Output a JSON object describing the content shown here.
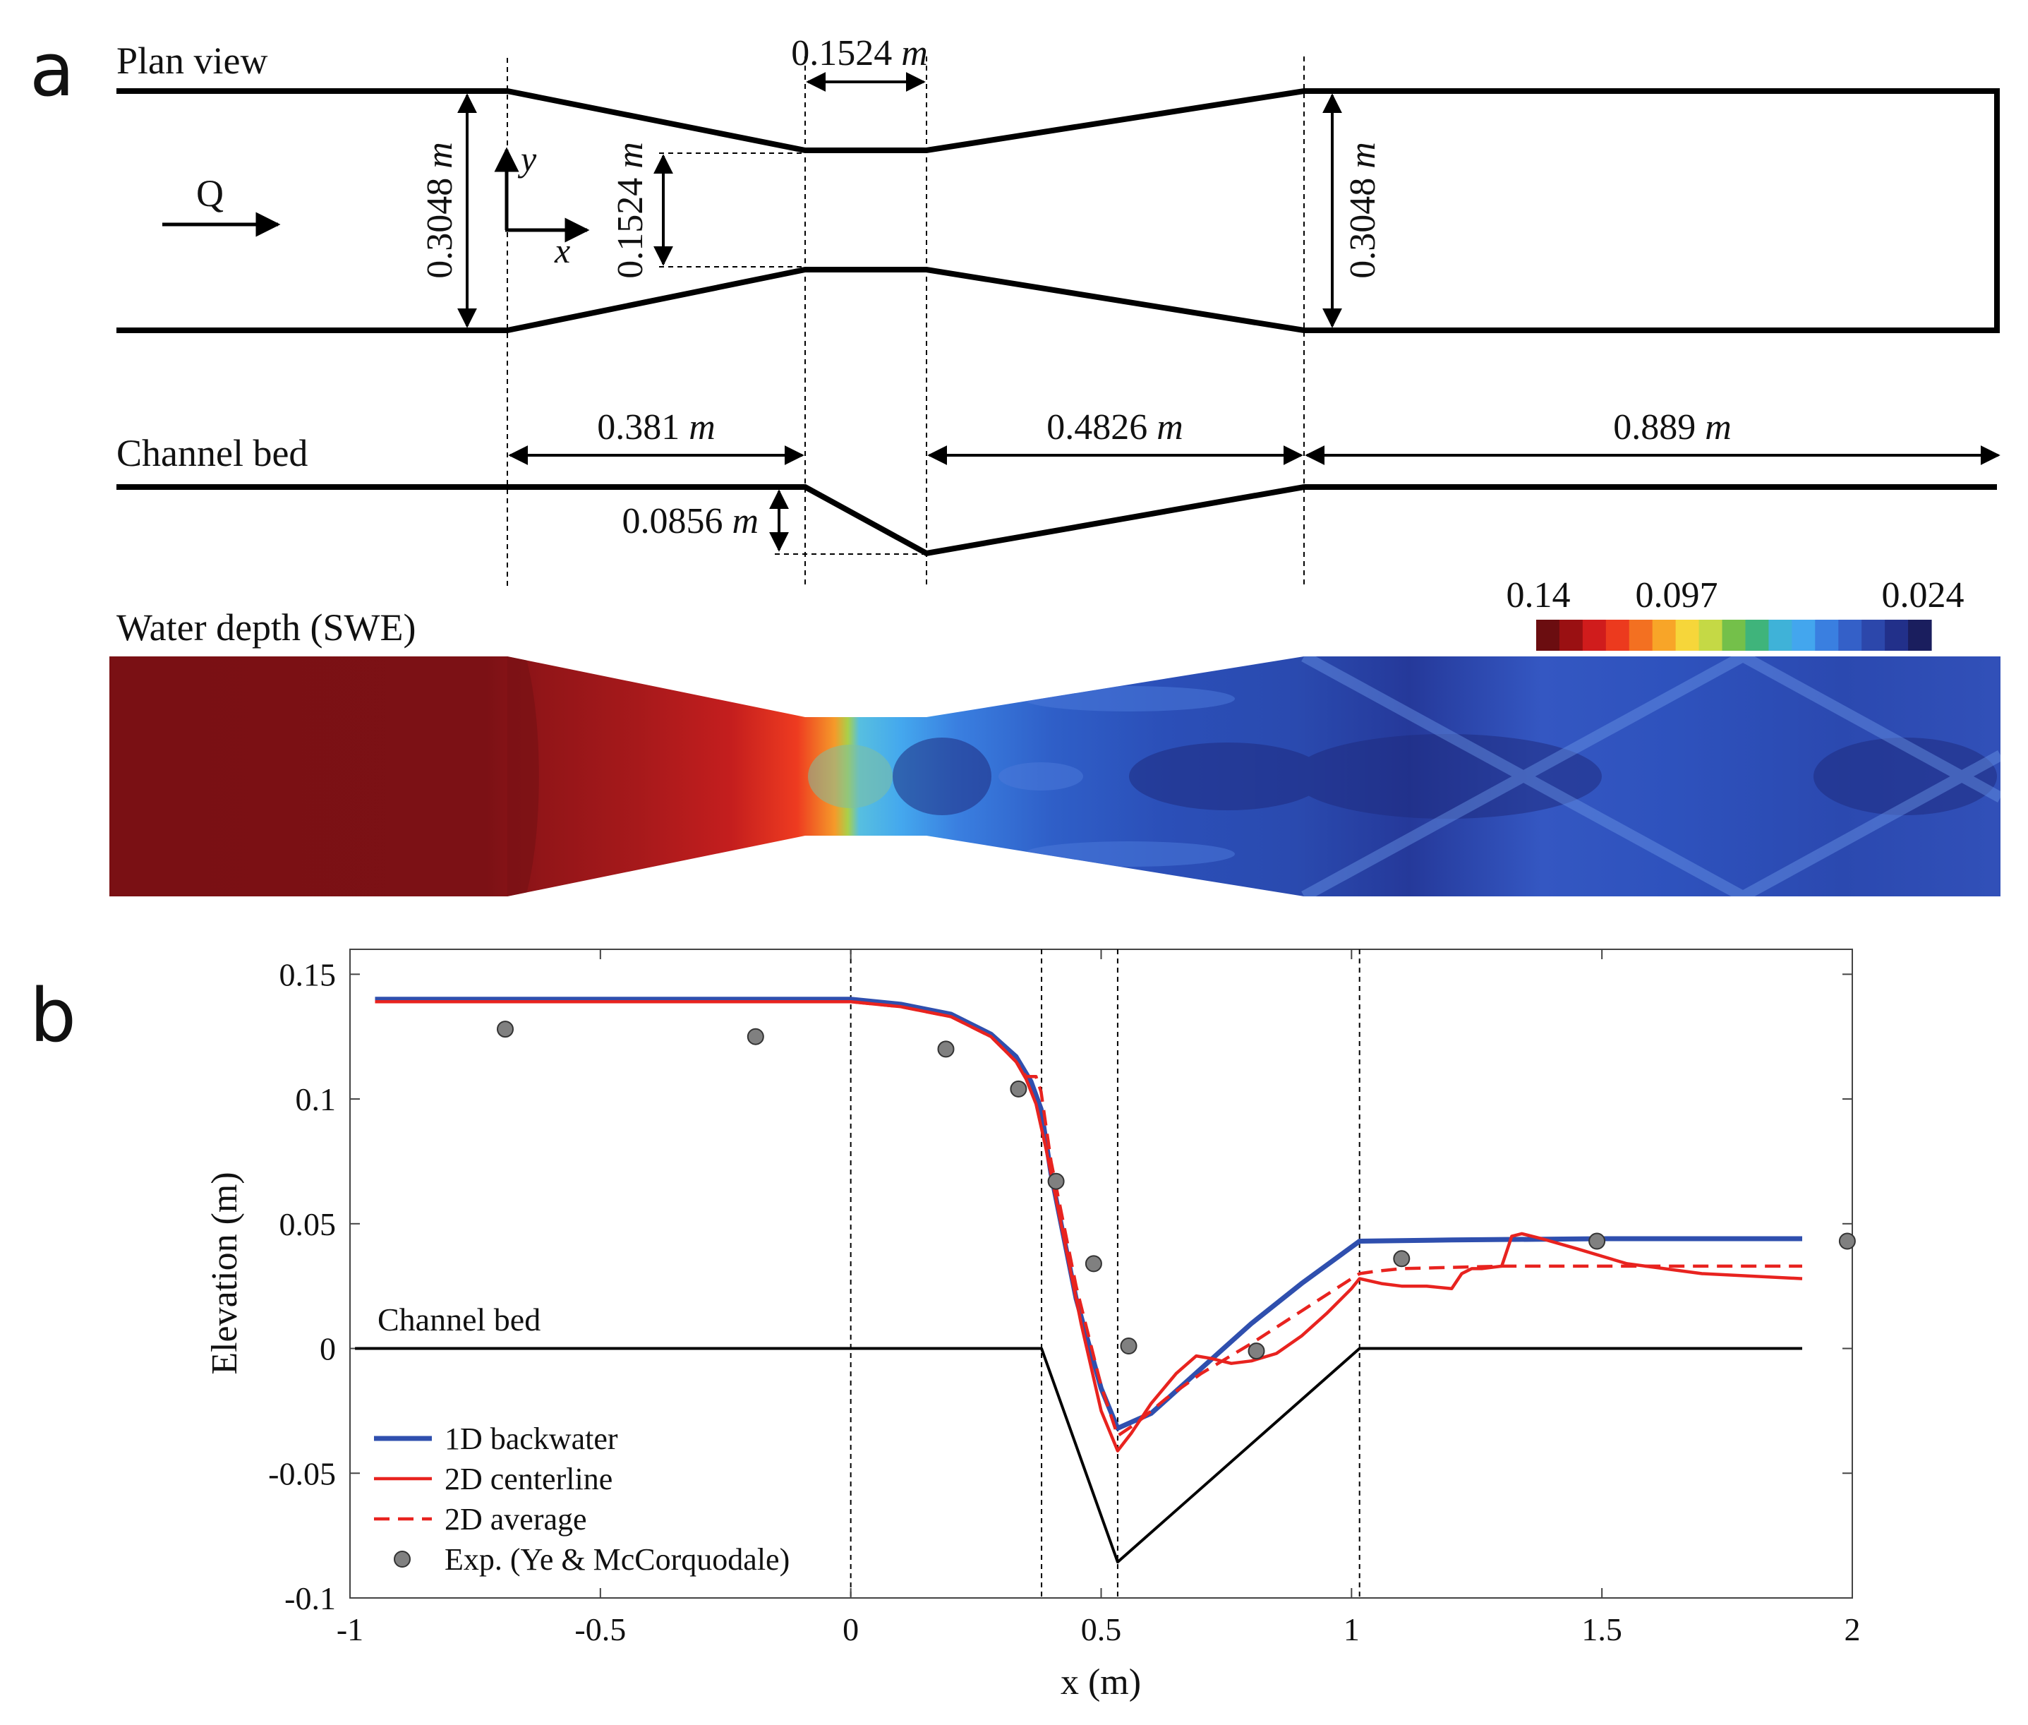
{
  "panel_a": {
    "letter": "a",
    "plan_view_label": "Plan view",
    "flow_label": "Q",
    "axis_y": "y",
    "axis_x": "x",
    "width_inlet": "0.3048",
    "width_throat": "0.1524",
    "width_outlet": "0.3048",
    "throat_length": "0.1524",
    "channel_bed_label": "Channel bed",
    "len_contraction": "0.381",
    "len_expansion": "0.4826",
    "len_outlet": "0.889",
    "drop_depth": "0.0856",
    "unit_m": "m",
    "depth_title": "Water depth (SWE)",
    "colorbar": {
      "ticks": [
        "0.14",
        "0.097",
        "0.024"
      ],
      "colors": [
        "#6b0d10",
        "#9a1012",
        "#d01c1c",
        "#ec3a1e",
        "#f37021",
        "#f8a528",
        "#f6d63a",
        "#c5d945",
        "#74c04a",
        "#3fb47b",
        "#3fb2d8",
        "#43a6ee",
        "#3a7fe0",
        "#3460c8",
        "#2c47ab",
        "#22308a",
        "#1a1e5e"
      ]
    }
  },
  "panel_b": {
    "letter": "b",
    "bed_annotation": "Channel bed"
  },
  "chart_data": {
    "type": "line",
    "title": "",
    "xlabel": "x (m)",
    "ylabel": "Elevation (m)",
    "xlim": [
      -1,
      2
    ],
    "ylim": [
      -0.1,
      0.16
    ],
    "xticks": [
      -1,
      -0.5,
      0,
      0.5,
      1,
      1.5,
      2
    ],
    "yticks": [
      -0.1,
      -0.05,
      0,
      0.05,
      0.1,
      0.15
    ],
    "xtick_labels": [
      "-1",
      "-0.5",
      "0",
      "0.5",
      "1",
      "1.5",
      "2"
    ],
    "ytick_labels": [
      "-0.1",
      "-0.05",
      "0",
      "0.05",
      "0.1",
      "0.15"
    ],
    "vlines": [
      0,
      0.381,
      0.533,
      1.016
    ],
    "legend_position": "bottom-left",
    "series": [
      {
        "name": "1D backwater",
        "style": "solid",
        "color": "#2f4fae",
        "x": [
          -0.95,
          -0.5,
          0,
          0.1,
          0.2,
          0.28,
          0.33,
          0.36,
          0.38,
          0.4,
          0.45,
          0.5,
          0.533,
          0.6,
          0.7,
          0.8,
          0.9,
          1.016,
          1.2,
          1.5,
          1.9
        ],
        "y": [
          0.14,
          0.14,
          0.14,
          0.138,
          0.134,
          0.126,
          0.117,
          0.107,
          0.096,
          0.07,
          0.02,
          -0.016,
          -0.032,
          -0.026,
          -0.008,
          0.01,
          0.026,
          0.043,
          0.0435,
          0.044,
          0.044
        ]
      },
      {
        "name": "2D centerline",
        "style": "solid",
        "color": "#e8231f",
        "x": [
          -0.95,
          -0.5,
          0,
          0.1,
          0.2,
          0.28,
          0.33,
          0.35,
          0.37,
          0.39,
          0.42,
          0.46,
          0.5,
          0.533,
          0.56,
          0.6,
          0.65,
          0.69,
          0.72,
          0.76,
          0.8,
          0.85,
          0.9,
          0.95,
          1.0,
          1.016,
          1.06,
          1.1,
          1.15,
          1.2,
          1.22,
          1.24,
          1.26,
          1.3,
          1.32,
          1.34,
          1.38,
          1.45,
          1.55,
          1.7,
          1.9
        ],
        "y": [
          0.139,
          0.139,
          0.139,
          0.137,
          0.133,
          0.125,
          0.115,
          0.108,
          0.098,
          0.08,
          0.05,
          0.01,
          -0.025,
          -0.041,
          -0.034,
          -0.022,
          -0.01,
          -0.003,
          -0.004,
          -0.006,
          -0.005,
          -0.002,
          0.005,
          0.014,
          0.024,
          0.028,
          0.026,
          0.025,
          0.025,
          0.024,
          0.03,
          0.032,
          0.032,
          0.033,
          0.045,
          0.046,
          0.044,
          0.04,
          0.034,
          0.03,
          0.028
        ]
      },
      {
        "name": "2D average",
        "style": "dashed",
        "color": "#e8231f",
        "x": [
          -0.95,
          -0.5,
          0,
          0.1,
          0.2,
          0.28,
          0.33,
          0.35,
          0.37,
          0.38,
          0.4,
          0.45,
          0.5,
          0.533,
          0.57,
          0.63,
          0.7,
          0.8,
          0.9,
          1.0,
          1.016,
          1.05,
          1.1,
          1.3,
          1.6,
          1.9
        ],
        "y": [
          0.139,
          0.139,
          0.139,
          0.137,
          0.133,
          0.125,
          0.115,
          0.109,
          0.109,
          0.103,
          0.075,
          0.025,
          -0.015,
          -0.035,
          -0.03,
          -0.02,
          -0.01,
          0.002,
          0.015,
          0.028,
          0.03,
          0.031,
          0.032,
          0.033,
          0.033,
          0.033
        ]
      },
      {
        "name": "Exp. (Ye & McCorquodale)",
        "style": "markers",
        "color": "#808080",
        "x": [
          -0.69,
          -0.19,
          0.19,
          0.335,
          0.41,
          0.485,
          0.555,
          0.81,
          1.1,
          1.49,
          1.99
        ],
        "y": [
          0.128,
          0.125,
          0.12,
          0.104,
          0.067,
          0.034,
          0.001,
          -0.001,
          0.036,
          0.043,
          0.043
        ]
      },
      {
        "name": "Channel bed",
        "style": "bed",
        "color": "#000000",
        "x": [
          -0.99,
          0.381,
          0.533,
          1.016,
          1.9
        ],
        "y": [
          0,
          0,
          -0.0856,
          0,
          0
        ]
      }
    ]
  }
}
